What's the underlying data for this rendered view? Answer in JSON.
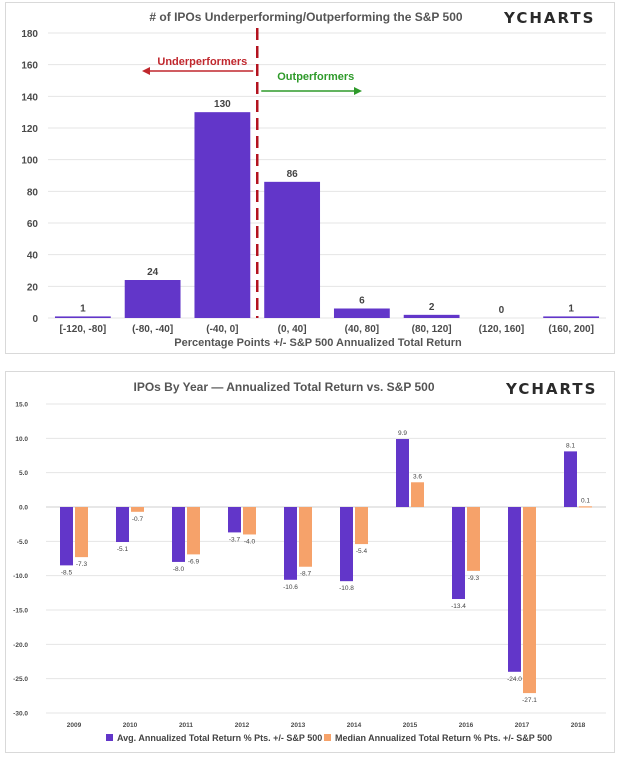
{
  "brand": "YCHARTS",
  "chart_data": [
    {
      "type": "bar",
      "title": "# of IPOs Underperforming/Outperforming the S&P 500",
      "xlabel": "Percentage Points +/- S&P 500 Annualized Total Return",
      "ylabel": "",
      "categories": [
        "[-120, -80]",
        "(-80, -40]",
        "(-40, 0]",
        "(0, 40]",
        "(40, 80]",
        "(80, 120]",
        "(120, 160]",
        "(160, 200]"
      ],
      "values": [
        1,
        24,
        130,
        86,
        6,
        2,
        0,
        1
      ],
      "ylim": [
        0,
        180
      ],
      "yticks": [
        "0",
        "20",
        "40",
        "60",
        "80",
        "100",
        "120",
        "140",
        "160",
        "180"
      ],
      "color": "#6236c9",
      "grid": true,
      "annotations": {
        "divider_color": "#b3131f",
        "under_label": "Underperformers",
        "under_color": "#c0272d",
        "out_label": "Outperformers",
        "out_color": "#2e9a2a"
      }
    },
    {
      "type": "bar",
      "title": "IPOs By Year — Annualized Total Return vs. S&P 500",
      "xlabel": "",
      "ylabel": "",
      "categories": [
        "2009",
        "2010",
        "2011",
        "2012",
        "2013",
        "2014",
        "2015",
        "2016",
        "2017",
        "2018"
      ],
      "series": [
        {
          "name": "Avg. Annualized Total Return % Pts. +/- S&P 500",
          "color": "#6236c9",
          "values": [
            -8.5,
            -5.1,
            -8.0,
            -3.7,
            -10.6,
            -10.8,
            9.9,
            -13.4,
            -24.0,
            8.1
          ],
          "labels": [
            "-8.5",
            "-5.1",
            "-8.0",
            "-3.7",
            "-10.6",
            "-10.8",
            "9.9",
            "-13.4",
            "-24.0",
            "8.1"
          ]
        },
        {
          "name": "Median Annualized Total Return % Pts. +/- S&P 500",
          "color": "#f6a26a",
          "values": [
            -7.3,
            -0.7,
            -6.9,
            -4.0,
            -8.7,
            -5.4,
            3.6,
            -9.3,
            -27.1,
            0.1
          ],
          "labels": [
            "-7.3",
            "-0.7",
            "-6.9",
            "-4.0",
            "-8.7",
            "-5.4",
            "3.6",
            "-9.3",
            "-27.1",
            "0.1"
          ]
        }
      ],
      "ylim": [
        -30,
        15
      ],
      "yticks": [
        "15.0",
        "10.0",
        "5.0",
        "0.0",
        "-5.0",
        "-10.0",
        "-15.0",
        "-20.0",
        "-25.0",
        "-30.0"
      ],
      "grid": true,
      "legend": "bottom"
    }
  ]
}
